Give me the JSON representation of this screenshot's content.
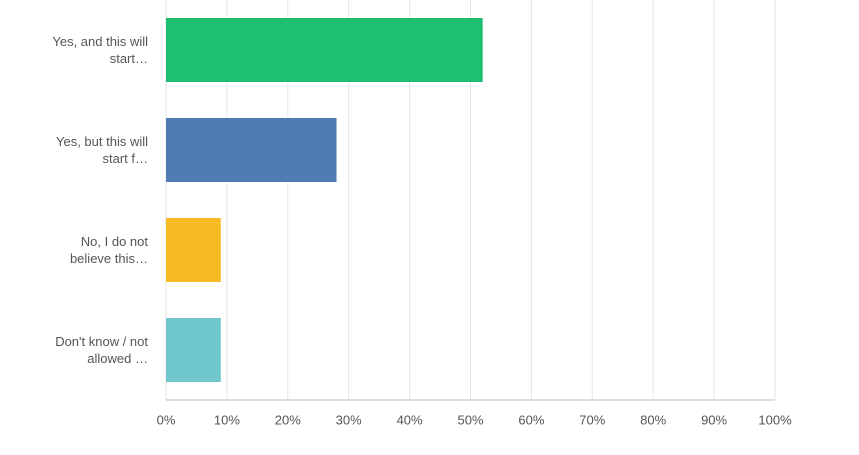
{
  "chart_data": {
    "type": "bar",
    "orientation": "horizontal",
    "categories": [
      "Yes, and this will start…",
      "Yes, but this will start f…",
      "No, I do not believe this…",
      "Don't know / not allowed …"
    ],
    "values": [
      52,
      28,
      9,
      9
    ],
    "colors": [
      "#1fbf72",
      "#507cb6",
      "#f6bb23",
      "#6fc7cc"
    ],
    "xlim": [
      0,
      100
    ],
    "xticks": [
      {
        "value": 0,
        "label": "0%"
      },
      {
        "value": 10,
        "label": "10%"
      },
      {
        "value": 20,
        "label": "20%"
      },
      {
        "value": 30,
        "label": "30%"
      },
      {
        "value": 40,
        "label": "40%"
      },
      {
        "value": 50,
        "label": "50%"
      },
      {
        "value": 60,
        "label": "60%"
      },
      {
        "value": 70,
        "label": "70%"
      },
      {
        "value": 80,
        "label": "80%"
      },
      {
        "value": 90,
        "label": "90%"
      },
      {
        "value": 100,
        "label": "100%"
      }
    ],
    "grid": true
  }
}
